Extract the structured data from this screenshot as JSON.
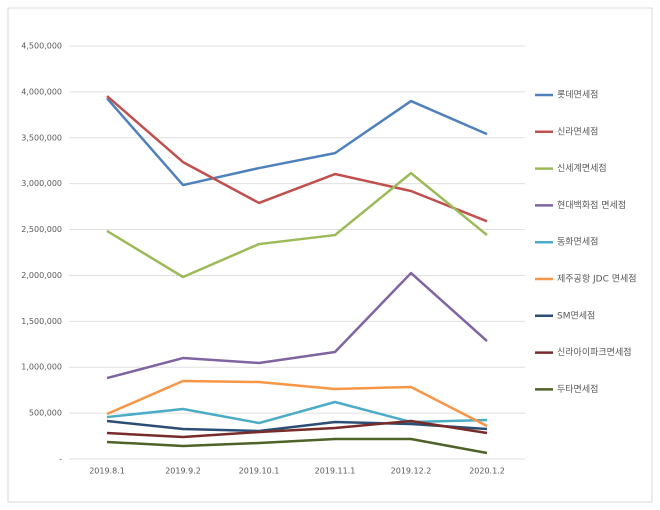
{
  "chart_data": {
    "type": "line",
    "categories": [
      "2019.8.1",
      "2019.9.2",
      "2019.10.1",
      "2019.11.1",
      "2019.12.2",
      "2020.1.2"
    ],
    "series": [
      {
        "name": "롯데면세점",
        "color": "#4f81bd",
        "values": [
          3930000,
          2985000,
          3170000,
          3333000,
          3900000,
          3540000
        ]
      },
      {
        "name": "신라면세점",
        "color": "#c0504d",
        "values": [
          3955000,
          3235000,
          2790000,
          3105000,
          2920000,
          2590000
        ]
      },
      {
        "name": "신세계면세점",
        "color": "#9bbb59",
        "values": [
          2485000,
          1983000,
          2342000,
          2440000,
          3115000,
          2440000
        ]
      },
      {
        "name": "현대백화점 면세점",
        "color": "#8064a2",
        "values": [
          882000,
          1100000,
          1046000,
          1166000,
          2026000,
          1285000
        ]
      },
      {
        "name": "동화면세점",
        "color": "#4bacc6",
        "values": [
          457000,
          545000,
          392000,
          621000,
          403000,
          425000
        ]
      },
      {
        "name": "제주공항 JDC 면세점",
        "color": "#f79646",
        "values": [
          490000,
          850000,
          839000,
          763000,
          784000,
          360000
        ]
      },
      {
        "name": "SM면세점",
        "color": "#2c4d75",
        "values": [
          414000,
          327000,
          305000,
          403000,
          381000,
          327000
        ]
      },
      {
        "name": "신라아이파크면세점",
        "color": "#772c2a",
        "values": [
          283000,
          240000,
          294000,
          338000,
          414000,
          283000
        ]
      },
      {
        "name": "두타면세점",
        "color": "#4f6228",
        "values": [
          185000,
          142000,
          174000,
          218000,
          218000,
          65000
        ]
      }
    ],
    "ylim": [
      0,
      4500000
    ],
    "yticks": [
      {
        "value": 0,
        "label": "-"
      },
      {
        "value": 500000,
        "label": "500,000"
      },
      {
        "value": 1000000,
        "label": "1,000,000"
      },
      {
        "value": 1500000,
        "label": "1,500,000"
      },
      {
        "value": 2000000,
        "label": "2,000,000"
      },
      {
        "value": 2500000,
        "label": "2,500,000"
      },
      {
        "value": 3000000,
        "label": "3,000,000"
      },
      {
        "value": 3500000,
        "label": "3,500,000"
      },
      {
        "value": 4000000,
        "label": "4,000,000"
      },
      {
        "value": 4500000,
        "label": "4,500,000"
      }
    ],
    "grid": true,
    "legend": "right"
  }
}
